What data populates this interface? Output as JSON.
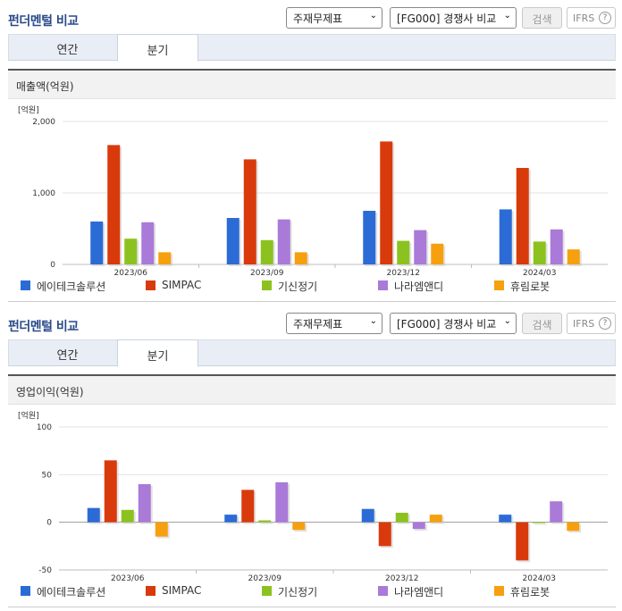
{
  "sections": [
    {
      "title": "펀더멘털 비교",
      "select_statement": "주재무제표",
      "select_peer": "[FG000] 경쟁사 비교",
      "search_label": "검색",
      "ifrs_label": "IFRS",
      "help_label": "?",
      "tabs": [
        {
          "label": "연간"
        },
        {
          "label": "분기"
        }
      ],
      "active_tab": "분기",
      "chart_title": "매출액(억원)"
    },
    {
      "title": "펀더멘털 비교",
      "select_statement": "주재무제표",
      "select_peer": "[FG000] 경쟁사 비교",
      "search_label": "검색",
      "ifrs_label": "IFRS",
      "help_label": "?",
      "tabs": [
        {
          "label": "연간"
        },
        {
          "label": "분기"
        }
      ],
      "active_tab": "분기",
      "chart_title": "영업이익(억원)"
    }
  ],
  "legend": [
    {
      "name": "에이테크솔루션",
      "color": "#2b6bd6"
    },
    {
      "name": "SIMPAC",
      "color": "#d93a0b"
    },
    {
      "name": "기신정기",
      "color": "#8cc21f"
    },
    {
      "name": "나라엠앤디",
      "color": "#a97ad8"
    },
    {
      "name": "휴림로봇",
      "color": "#f6a00f"
    }
  ],
  "chart_data": [
    {
      "type": "bar",
      "unit_label": "[억원]",
      "categories": [
        "2023/06",
        "2023/09",
        "2023/12",
        "2024/03"
      ],
      "yticks": [
        "2,000",
        "1,000",
        "0"
      ],
      "ylim": [
        0,
        2000
      ],
      "series": [
        {
          "name": "에이테크솔루션",
          "color": "#2b6bd6",
          "values": [
            600,
            650,
            750,
            770
          ]
        },
        {
          "name": "SIMPAC",
          "color": "#d93a0b",
          "values": [
            1670,
            1470,
            1720,
            1350
          ]
        },
        {
          "name": "기신정기",
          "color": "#8cc21f",
          "values": [
            360,
            340,
            330,
            320
          ]
        },
        {
          "name": "나라엠앤디",
          "color": "#a97ad8",
          "values": [
            590,
            630,
            480,
            490
          ]
        },
        {
          "name": "휴림로봇",
          "color": "#f6a00f",
          "values": [
            170,
            170,
            290,
            210
          ]
        }
      ]
    },
    {
      "type": "bar",
      "unit_label": "[억원]",
      "categories": [
        "2023/06",
        "2023/09",
        "2023/12",
        "2024/03"
      ],
      "yticks": [
        "100",
        "50",
        "0",
        "-50"
      ],
      "ylim": [
        -50,
        100
      ],
      "series": [
        {
          "name": "에이테크솔루션",
          "color": "#2b6bd6",
          "values": [
            15,
            8,
            14,
            8
          ]
        },
        {
          "name": "SIMPAC",
          "color": "#d93a0b",
          "values": [
            65,
            34,
            -25,
            -40
          ]
        },
        {
          "name": "기신정기",
          "color": "#8cc21f",
          "values": [
            13,
            2,
            10,
            -1
          ]
        },
        {
          "name": "나라엠앤디",
          "color": "#a97ad8",
          "values": [
            40,
            42,
            -7,
            22
          ]
        },
        {
          "name": "휴림로봇",
          "color": "#f6a00f",
          "values": [
            -15,
            -8,
            8,
            -9
          ]
        }
      ]
    }
  ]
}
